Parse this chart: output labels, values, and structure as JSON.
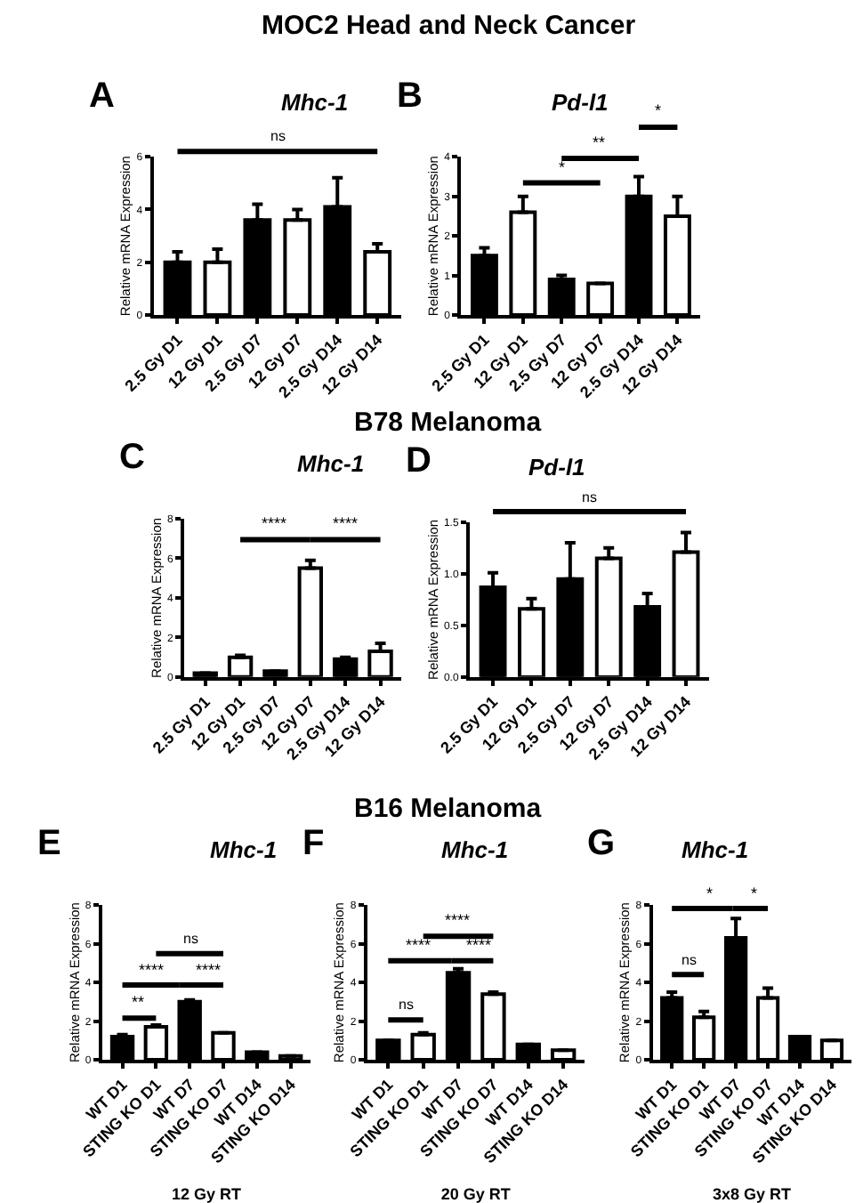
{
  "chart_data": [
    {
      "type": "bar",
      "subtitle": "MOC2 Head and Neck Cancer",
      "title": "Mhc-1",
      "ylabel": "Relative mRNA Expression",
      "categories": [
        "2.5 Gy D1",
        "12 Gy D1",
        "2.5 Gy D7",
        "12 Gy D7",
        "2.5 Gy D14",
        "12 Gy D14"
      ],
      "values": [
        2.0,
        2.0,
        3.6,
        3.6,
        4.1,
        2.4
      ],
      "errors": [
        [
          2.0,
          2.4
        ],
        [
          2.0,
          2.5
        ],
        [
          3.6,
          4.2
        ],
        [
          3.6,
          4.0
        ],
        [
          4.1,
          5.2
        ],
        [
          2.4,
          2.7
        ]
      ],
      "colors": [
        "#000000",
        "#ffffff",
        "#000000",
        "#ffffff",
        "#000000",
        "#ffffff"
      ],
      "ylim": [
        0,
        6
      ],
      "yticks": [
        0,
        2,
        4,
        6
      ],
      "annotations": [
        "A",
        "ns"
      ]
    },
    {
      "type": "bar",
      "title": "Pd-l1",
      "ylabel": "Relative mRNA Expression",
      "categories": [
        "2.5 Gy D1",
        "12 Gy D1",
        "2.5 Gy D7",
        "12 Gy D7",
        "2.5 Gy D14",
        "12 Gy D14"
      ],
      "values": [
        1.5,
        2.6,
        0.9,
        0.8,
        3.0,
        2.5
      ],
      "errors": [
        [
          1.5,
          1.7
        ],
        [
          2.6,
          3.0
        ],
        [
          0.9,
          1.0
        ],
        [
          0.8,
          0.8
        ],
        [
          3.0,
          3.5
        ],
        [
          2.5,
          3.0
        ]
      ],
      "colors": [
        "#000000",
        "#ffffff",
        "#000000",
        "#ffffff",
        "#000000",
        "#ffffff"
      ],
      "ylim": [
        0,
        4
      ],
      "yticks": [
        0,
        1,
        2,
        3,
        4
      ],
      "annotations": [
        "B",
        "*",
        "**",
        "*"
      ]
    },
    {
      "type": "bar",
      "subtitle": "B78 Melanoma",
      "title": "Mhc-1",
      "ylabel": "Relative mRNA Expression",
      "categories": [
        "2.5 Gy D1",
        "12 Gy D1",
        "2.5 Gy D7",
        "12 Gy D7",
        "2.5 Gy D14",
        "12 Gy D14"
      ],
      "values": [
        0.2,
        1.0,
        0.3,
        5.5,
        0.9,
        1.3
      ],
      "errors": [
        [
          0.2,
          0.2
        ],
        [
          1.0,
          1.1
        ],
        [
          0.3,
          0.3
        ],
        [
          5.5,
          5.9
        ],
        [
          0.9,
          1.0
        ],
        [
          1.3,
          1.7
        ]
      ],
      "colors": [
        "#000000",
        "#ffffff",
        "#000000",
        "#ffffff",
        "#000000",
        "#ffffff"
      ],
      "ylim": [
        0,
        8
      ],
      "yticks": [
        0,
        2,
        4,
        6,
        8
      ],
      "annotations": [
        "C",
        "****",
        "****"
      ]
    },
    {
      "type": "bar",
      "title": "Pd-l1",
      "ylabel": "Relative mRNA Expression",
      "categories": [
        "2.5 Gy D1",
        "12 Gy D1",
        "2.5 Gy D7",
        "12 Gy D7",
        "2.5 Gy D14",
        "12 Gy D14"
      ],
      "values": [
        0.87,
        0.66,
        0.95,
        1.15,
        0.68,
        1.21
      ],
      "errors": [
        [
          0.87,
          1.01
        ],
        [
          0.66,
          0.76
        ],
        [
          0.95,
          1.3
        ],
        [
          1.15,
          1.25
        ],
        [
          0.68,
          0.81
        ],
        [
          1.21,
          1.4
        ]
      ],
      "colors": [
        "#000000",
        "#ffffff",
        "#000000",
        "#ffffff",
        "#000000",
        "#ffffff"
      ],
      "ylim": [
        0,
        1.5
      ],
      "yticks": [
        {
          "value": 0,
          "label": "0.0"
        },
        {
          "value": 0.5,
          "label": "0.5"
        },
        {
          "value": 1,
          "label": "1.0"
        },
        {
          "value": 1.5,
          "label": "1.5"
        }
      ],
      "annotations": [
        "D",
        "ns"
      ]
    },
    {
      "type": "bar",
      "title": "Mhc-1",
      "ylabel": "Relative mRNA Expression",
      "xlabel": "12 Gy RT",
      "categories": [
        "WT D1",
        "STING KO D1",
        "WT D7",
        "STING KO D7",
        "WT D14",
        "STING KO D14"
      ],
      "values": [
        1.2,
        1.7,
        3.0,
        1.4,
        0.4,
        0.2
      ],
      "errors": [
        [
          1.2,
          1.3
        ],
        [
          1.7,
          1.8
        ],
        [
          3.0,
          3.1
        ],
        [
          1.4,
          1.4
        ],
        [
          0.4,
          0.4
        ],
        [
          0.2,
          0.2
        ]
      ],
      "colors": [
        "#000000",
        "#ffffff",
        "#000000",
        "#ffffff",
        "#000000",
        "#ffffff"
      ],
      "ylim": [
        0,
        8
      ],
      "yticks": [
        0,
        2,
        4,
        6,
        8
      ],
      "annotations": [
        "E",
        "**",
        "****",
        "****",
        "ns"
      ]
    },
    {
      "type": "bar",
      "subtitle": "B16 Melanoma",
      "title": "Mhc-1",
      "ylabel": "Relative mRNA Expression",
      "xlabel": "20 Gy RT",
      "categories": [
        "WT D1",
        "STING KO D1",
        "WT D7",
        "STING KO D7",
        "WT D14",
        "STING KO D14"
      ],
      "values": [
        1.0,
        1.3,
        4.5,
        3.4,
        0.8,
        0.5
      ],
      "errors": [
        [
          1.0,
          1.0
        ],
        [
          1.3,
          1.4
        ],
        [
          4.5,
          4.7
        ],
        [
          3.4,
          3.5
        ],
        [
          0.8,
          0.8
        ],
        [
          0.5,
          0.5
        ]
      ],
      "colors": [
        "#000000",
        "#ffffff",
        "#000000",
        "#ffffff",
        "#000000",
        "#ffffff"
      ],
      "ylim": [
        0,
        8
      ],
      "yticks": [
        0,
        2,
        4,
        6,
        8
      ],
      "annotations": [
        "F",
        "ns",
        "****",
        "****",
        "****"
      ]
    },
    {
      "type": "bar",
      "title": "Mhc-1",
      "ylabel": "Relative mRNA Expression",
      "xlabel": "3x8 Gy RT",
      "categories": [
        "WT D1",
        "STING KO D1",
        "WT D7",
        "STING KO D7",
        "WT D14",
        "STING KO D14"
      ],
      "values": [
        3.2,
        2.2,
        6.3,
        3.2,
        1.2,
        1.0
      ],
      "errors": [
        [
          3.2,
          3.5
        ],
        [
          2.2,
          2.5
        ],
        [
          6.3,
          7.3
        ],
        [
          3.2,
          3.7
        ],
        [
          1.2,
          1.2
        ],
        [
          1.0,
          1.0
        ]
      ],
      "colors": [
        "#000000",
        "#ffffff",
        "#000000",
        "#ffffff",
        "#000000",
        "#ffffff"
      ],
      "ylim": [
        0,
        8
      ],
      "yticks": [
        0,
        2,
        4,
        6,
        8
      ],
      "annotations": [
        "G",
        "ns",
        "*",
        "*"
      ]
    }
  ]
}
